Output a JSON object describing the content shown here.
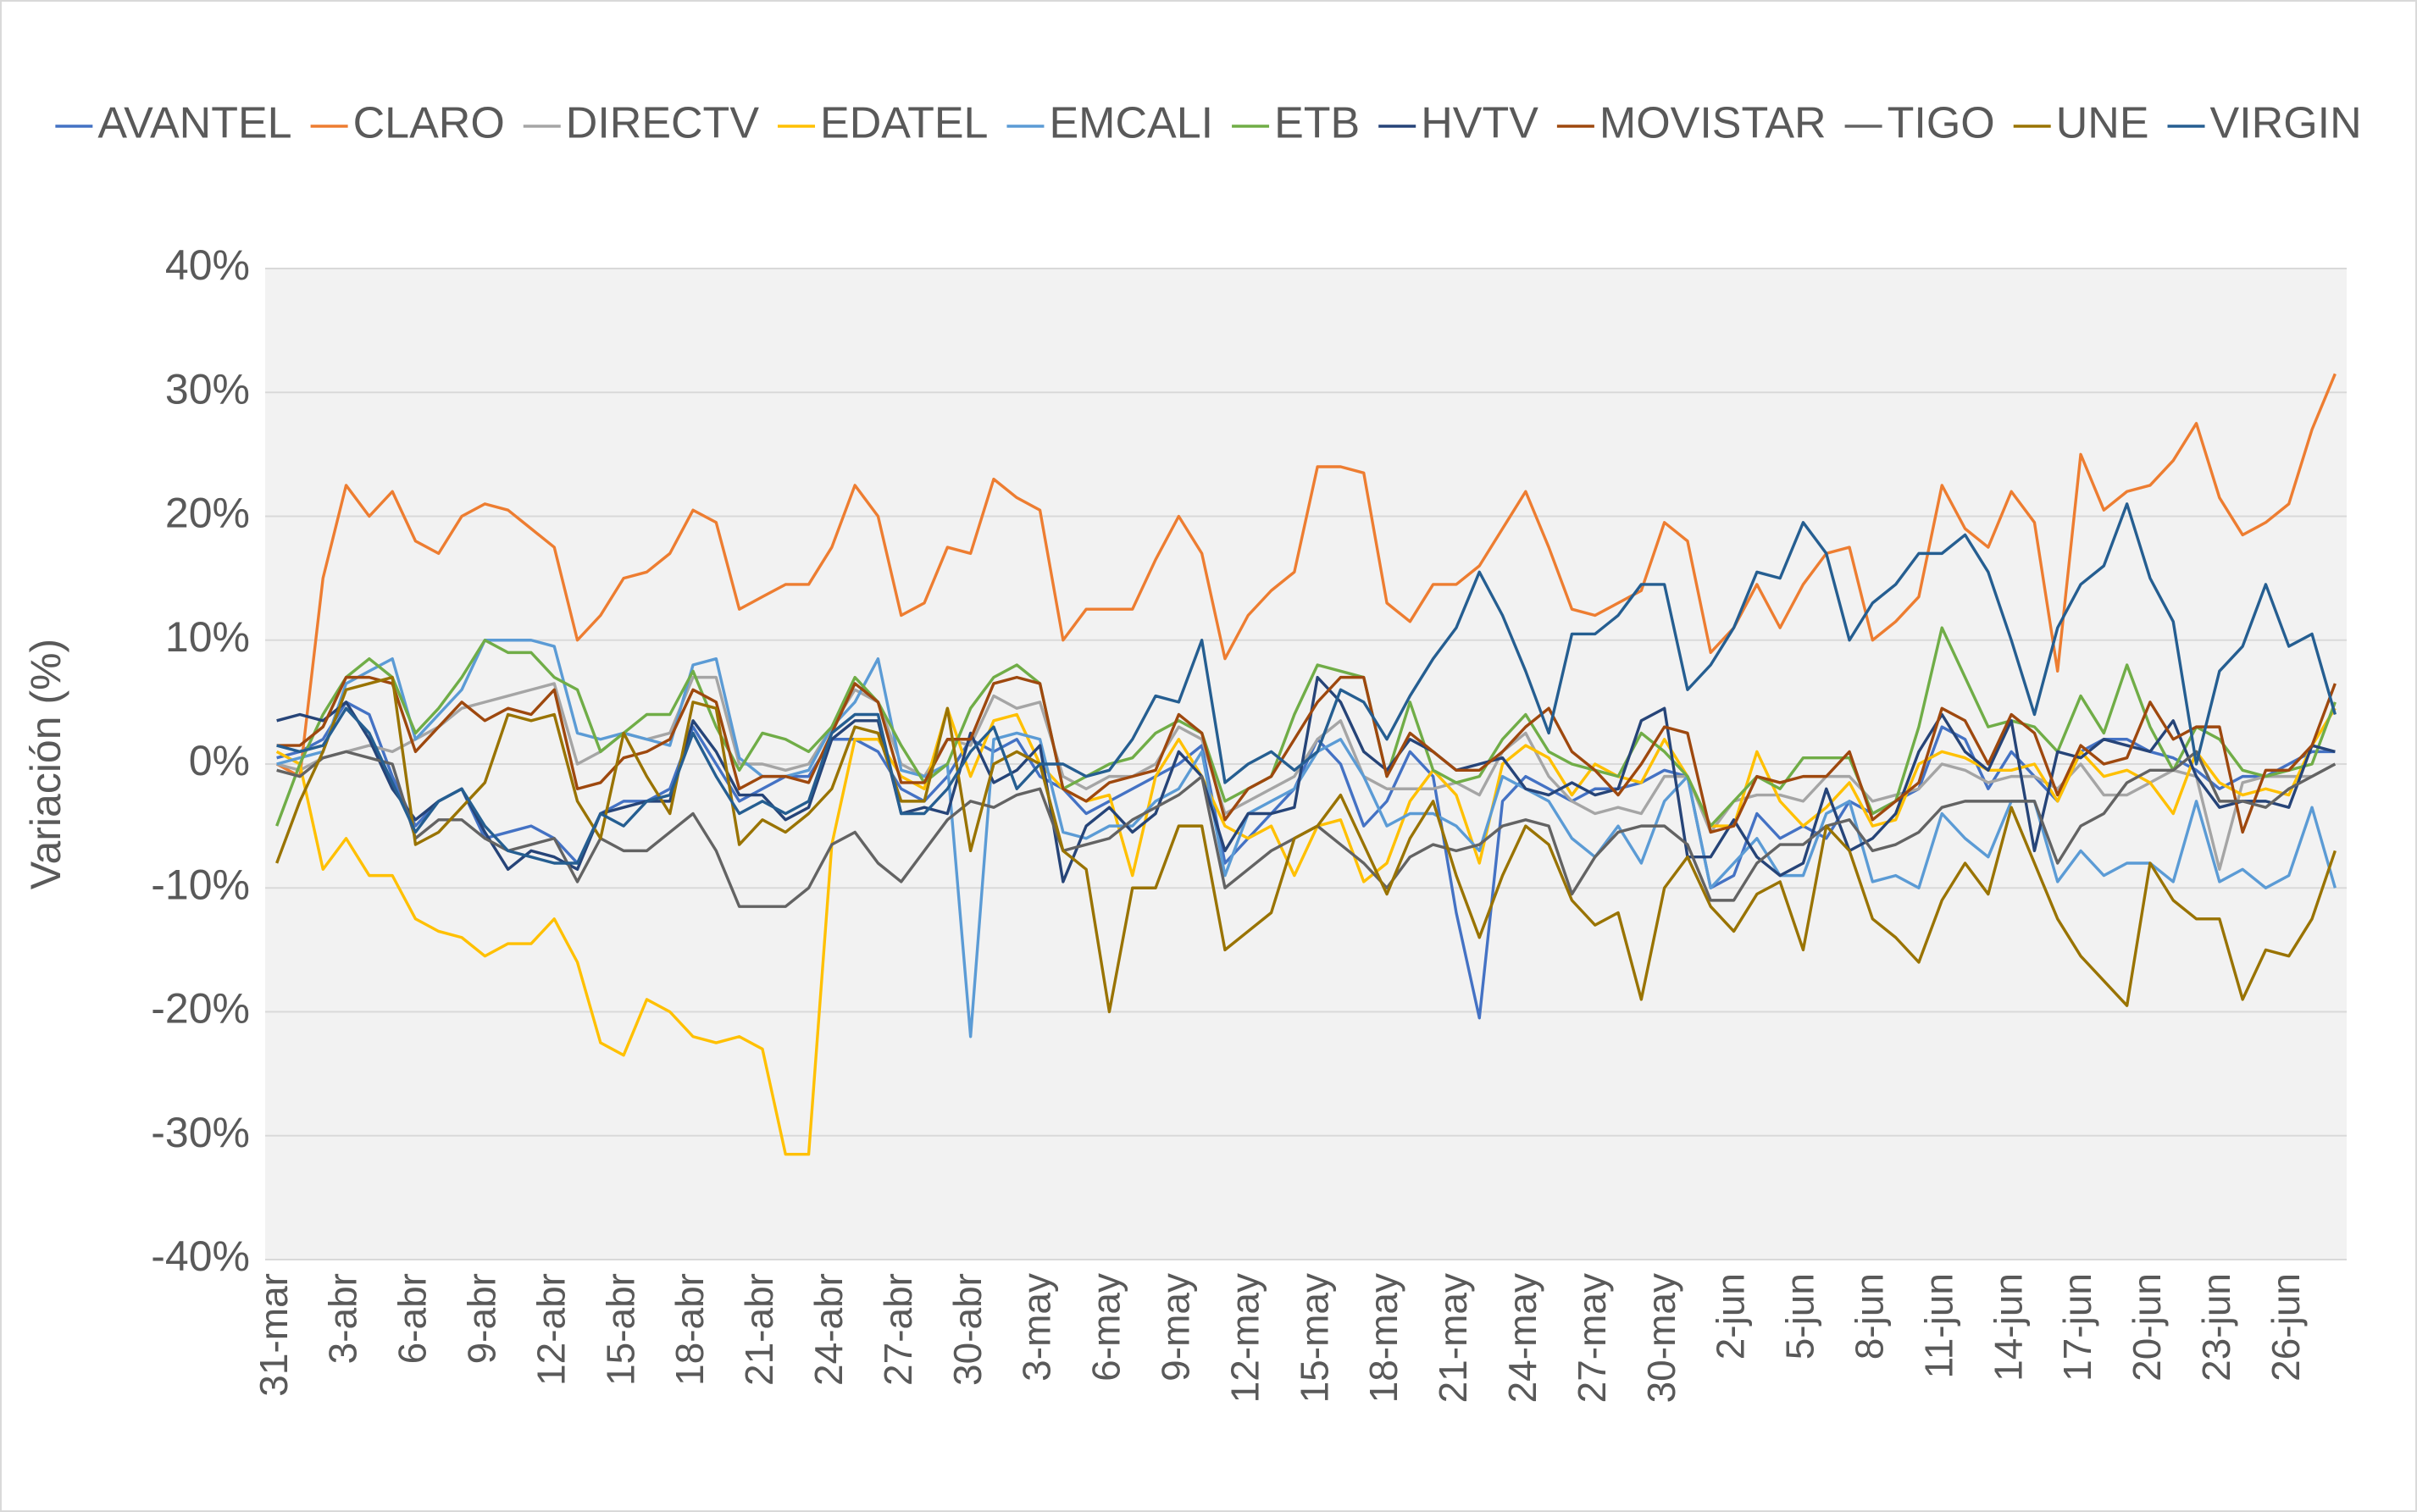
{
  "chart_data": {
    "type": "line",
    "y_label": "Variación (%)",
    "legend": "top",
    "grid": true,
    "ylim": [
      -40,
      40
    ],
    "yticks": [
      {
        "value": -40,
        "label": "-40%"
      },
      {
        "value": -30,
        "label": "-30%"
      },
      {
        "value": -20,
        "label": "-20%"
      },
      {
        "value": -10,
        "label": "-10%"
      },
      {
        "value": 0,
        "label": "0%"
      },
      {
        "value": 10,
        "label": "10%"
      },
      {
        "value": 20,
        "label": "20%"
      },
      {
        "value": 30,
        "label": "30%"
      },
      {
        "value": 40,
        "label": "40%"
      }
    ],
    "categories": [
      "31-mar",
      null,
      null,
      "3-abr",
      null,
      null,
      "6-abr",
      null,
      null,
      "9-abr",
      null,
      null,
      "12-abr",
      null,
      null,
      "15-abr",
      null,
      null,
      "18-abr",
      null,
      null,
      "21-abr",
      null,
      null,
      "24-abr",
      null,
      null,
      "27-abr",
      null,
      null,
      "30-abr",
      null,
      null,
      "3-may",
      null,
      null,
      "6-may",
      null,
      null,
      "9-may",
      null,
      null,
      "12-may",
      null,
      null,
      "15-may",
      null,
      null,
      "18-may",
      null,
      null,
      "21-may",
      null,
      null,
      "24-may",
      null,
      null,
      "27-may",
      null,
      null,
      "30-may",
      null,
      null,
      "2-jun",
      null,
      null,
      "5-jun",
      null,
      null,
      "8-jun",
      null,
      null,
      "11-jun",
      null,
      null,
      "14-jun",
      null,
      null,
      "17-jun",
      null,
      null,
      "20-jun",
      null,
      null,
      "23-jun",
      null,
      null,
      "26-jun",
      null,
      null
    ],
    "series": [
      {
        "name": "AVANTEL",
        "color": "#4472c4",
        "values": [
          0.5,
          1,
          2,
          5,
          4,
          -1,
          -5,
          -3,
          -2,
          -6,
          -5.5,
          -5,
          -6,
          -8,
          -4,
          -3,
          -3,
          -2,
          3,
          0,
          -3,
          -2,
          -1,
          -1,
          2,
          2,
          1,
          -2,
          -3,
          -1,
          2,
          1,
          2,
          -1,
          -2,
          -4,
          -3,
          -2,
          -1,
          0,
          1.5,
          -8,
          -6,
          -4,
          -2,
          2,
          0,
          -5,
          -3,
          1,
          -1,
          -12,
          -20.5,
          -3,
          -1,
          -2,
          -3,
          -2,
          -2,
          -1.5,
          -0.5,
          -1,
          -10,
          -9,
          -4,
          -6,
          -5,
          -6,
          -3,
          -4,
          -3,
          -2,
          3,
          2,
          -2,
          1,
          -1,
          -3,
          1,
          2,
          2,
          1,
          0.5,
          -0.5,
          -2,
          -1,
          -1,
          0,
          1,
          1
        ]
      },
      {
        "name": "CLARO",
        "color": "#ed7d31",
        "values": [
          0,
          -1,
          15,
          22.5,
          20,
          22,
          18,
          17,
          20,
          21,
          20.5,
          19,
          17.5,
          10,
          12,
          15,
          15.5,
          17,
          20.5,
          19.5,
          12.5,
          13.5,
          14.5,
          14.5,
          17.5,
          22.5,
          20,
          12,
          13,
          17.5,
          17,
          23,
          21.5,
          20.5,
          10,
          12.5,
          12.5,
          12.5,
          16.5,
          20,
          17,
          8.5,
          12,
          14,
          15.5,
          24,
          24,
          23.5,
          13,
          11.5,
          14.5,
          14.5,
          16,
          19,
          22,
          17.5,
          12.5,
          12,
          13,
          14,
          19.5,
          18,
          9,
          11,
          14.5,
          11,
          14.5,
          17,
          17.5,
          10,
          11.5,
          13.5,
          22.5,
          19,
          17.5,
          22,
          19.5,
          7.5,
          25,
          20.5,
          22,
          22.5,
          24.5,
          27.5,
          21.5,
          18.5,
          19.5,
          21,
          27,
          31.5
        ]
      },
      {
        "name": "DIRECTV",
        "color": "#a5a5a5",
        "values": [
          0,
          -0.5,
          0.5,
          1,
          1.5,
          1,
          2,
          3,
          4.5,
          5,
          5.5,
          6,
          6.5,
          0,
          1,
          2.5,
          2,
          2.5,
          7,
          7,
          0,
          0,
          -0.5,
          0,
          3,
          6,
          5,
          0,
          -1,
          2,
          1.5,
          5.5,
          4.5,
          5,
          -1,
          -2,
          -1,
          -1,
          0,
          3,
          2,
          -4,
          -3,
          -2,
          -1,
          2,
          3.5,
          -1,
          -2,
          -2,
          -2,
          -1.5,
          -2.5,
          1,
          2.5,
          -1,
          -3,
          -4,
          -3.5,
          -4,
          -1,
          -1,
          -5.5,
          -3,
          -2.5,
          -2.5,
          -3,
          -1,
          -1,
          -3,
          -2.5,
          -2,
          0,
          -0.5,
          -1.5,
          -1,
          -1,
          -2,
          0,
          -2.5,
          -2.5,
          -1.5,
          -0.5,
          -1,
          -8.5,
          -1.5,
          -1,
          -1,
          -1,
          0
        ]
      },
      {
        "name": "EDATEL",
        "color": "#ffc000",
        "values": [
          1,
          0,
          -8.5,
          -6,
          -9,
          -9,
          -12.5,
          -13.5,
          -14,
          -15.5,
          -14.5,
          -14.5,
          -12.5,
          -16,
          -22.5,
          -23.5,
          -19,
          -20,
          -22,
          -22.5,
          -22,
          -23,
          -31.5,
          -31.5,
          -6.5,
          2,
          2,
          -1,
          -2,
          4.5,
          -1,
          3.5,
          4,
          0,
          -2,
          -3,
          -2.5,
          -9,
          -1,
          2,
          -1,
          -5,
          -6,
          -5,
          -9,
          -5,
          -4.5,
          -9.5,
          -8,
          -3,
          -0.5,
          -2.5,
          -8,
          0,
          1.5,
          0.5,
          -2.5,
          0,
          -1,
          -1.5,
          2,
          -1,
          -5,
          -5,
          1,
          -3,
          -5,
          -3.5,
          -1.5,
          -5,
          -4.5,
          0,
          1,
          0.5,
          -0.5,
          -0.5,
          0,
          -3,
          1,
          -1,
          -0.5,
          -1.5,
          -4,
          1,
          -1.5,
          -2.5,
          -2,
          -2.5,
          1.5,
          4.5
        ]
      },
      {
        "name": "EMCALI",
        "color": "#5b9bd5",
        "values": [
          0,
          0.5,
          1,
          6.5,
          7.5,
          8.5,
          2,
          4,
          6,
          10,
          10,
          10,
          9.5,
          2.5,
          2,
          2.5,
          2,
          1.5,
          8,
          8.5,
          0.5,
          -1,
          -1,
          -0.5,
          3,
          5,
          8.5,
          -0.5,
          -1,
          0,
          -22,
          2,
          2.5,
          2,
          -5.5,
          -6,
          -5,
          -5,
          -3,
          -2,
          1,
          -9,
          -4,
          -3,
          -2,
          1,
          2,
          -1,
          -5,
          -4,
          -4,
          -5,
          -7,
          -1,
          -2,
          -3,
          -6,
          -7.5,
          -5,
          -8,
          -3,
          -1,
          -10,
          -8,
          -6,
          -9,
          -9,
          -4,
          -3,
          -9.5,
          -9,
          -10,
          -4,
          -6,
          -7.5,
          -3,
          -3,
          -9.5,
          -7,
          -9,
          -8,
          -8,
          -9.5,
          -3,
          -9.5,
          -8.5,
          -10,
          -9,
          -3.5,
          -10
        ]
      },
      {
        "name": "ETB",
        "color": "#70ad47",
        "values": [
          -5,
          0,
          4,
          7,
          8.5,
          7,
          2.5,
          4.5,
          7,
          10,
          9,
          9,
          7,
          6,
          1,
          2.5,
          4,
          4,
          7.5,
          3,
          -0.5,
          2.5,
          2,
          1,
          3,
          7,
          5,
          1.5,
          -1.5,
          0,
          4.5,
          7,
          8,
          6.5,
          -2,
          -1,
          0,
          0.5,
          2.5,
          3.5,
          2.5,
          -3,
          -2,
          -1,
          4,
          8,
          7.5,
          7,
          -1,
          5,
          -0.5,
          -1.5,
          -1,
          2,
          4,
          1,
          0,
          -0.5,
          -1,
          2.5,
          1,
          -1,
          -5,
          -3,
          -1,
          -2,
          0.5,
          0.5,
          0.5,
          -4,
          -3,
          3,
          11,
          7,
          3,
          3.5,
          3,
          1,
          5.5,
          2.5,
          8,
          3,
          -0.5,
          3,
          2,
          -0.5,
          -1,
          -0.5,
          0,
          5
        ]
      },
      {
        "name": "HVTV",
        "color": "#264478",
        "values": [
          3.5,
          4,
          3.5,
          5,
          2,
          -2,
          -4.5,
          -3,
          -2,
          -5.5,
          -8.5,
          -7,
          -7.5,
          -8.5,
          -4,
          -3.5,
          -3,
          -3,
          3.5,
          1,
          -2.5,
          -2.5,
          -4.5,
          -3.5,
          2,
          3.5,
          3.5,
          -4,
          -3.5,
          -4,
          2.5,
          -1.5,
          -0.5,
          1.5,
          -9.5,
          -5,
          -3.5,
          -5.5,
          -4,
          1,
          -1,
          -7,
          -4,
          -4,
          -3.5,
          7,
          5,
          1,
          -0.5,
          2,
          1,
          -0.5,
          0,
          0.5,
          -2,
          -2.5,
          -1.5,
          -2.5,
          -2,
          3.5,
          4.5,
          -7.5,
          -7.5,
          -4.5,
          -7.5,
          -9,
          -8,
          -2,
          -7,
          -6,
          -4,
          1,
          4,
          1,
          -0.5,
          3.5,
          -7,
          1,
          0.5,
          2,
          1.5,
          1,
          3.5,
          -1,
          -3.5,
          -3,
          -3,
          -3.5,
          1.5,
          1
        ]
      },
      {
        "name": "MOVISTAR",
        "color": "#9e480e",
        "values": [
          1.5,
          1.5,
          3,
          7,
          7,
          6.5,
          1,
          3,
          5,
          3.5,
          4.5,
          4,
          6,
          -2,
          -1.5,
          0.5,
          1,
          2,
          6,
          5,
          -2,
          -1,
          -1,
          -1.5,
          2.5,
          6.5,
          5,
          -1.5,
          -1.5,
          2,
          2,
          6.5,
          7,
          6.5,
          -2,
          -3,
          -1.5,
          -1,
          -0.5,
          4,
          2.5,
          -4.5,
          -2,
          -1,
          2,
          5,
          7,
          7,
          -1,
          2.5,
          1,
          -0.5,
          -0.5,
          1,
          3,
          4.5,
          1,
          -0.5,
          -2.5,
          0,
          3,
          2.5,
          -5.5,
          -5,
          -1,
          -1.5,
          -1,
          -1,
          1,
          -4.5,
          -3,
          -1.5,
          4.5,
          3.5,
          0,
          4,
          2.5,
          -2.5,
          1.5,
          0,
          0.5,
          5,
          2,
          3,
          3,
          -5.5,
          -0.5,
          -0.5,
          1.5,
          6.5
        ]
      },
      {
        "name": "TIGO",
        "color": "#636363",
        "values": [
          -0.5,
          -1,
          0.5,
          1,
          0.5,
          0,
          -6,
          -4.5,
          -4.5,
          -6,
          -7,
          -6.5,
          -6,
          -9.5,
          -6,
          -7,
          -7,
          -5.5,
          -4,
          -7,
          -11.5,
          -11.5,
          -11.5,
          -10,
          -6.5,
          -5.5,
          -8,
          -9.5,
          -7,
          -4.5,
          -3,
          -3.5,
          -2.5,
          -2,
          -7,
          -6.5,
          -6,
          -4.5,
          -3.5,
          -2.5,
          -1,
          -10,
          -8.5,
          -7,
          -6,
          -5,
          -6.5,
          -8,
          -10,
          -7.5,
          -6.5,
          -7,
          -6.5,
          -5,
          -4.5,
          -5,
          -10.5,
          -7.5,
          -5.5,
          -5,
          -5,
          -6.5,
          -11,
          -11,
          -8,
          -6.5,
          -6.5,
          -5,
          -4.5,
          -7,
          -6.5,
          -5.5,
          -3.5,
          -3,
          -3,
          -3,
          -3,
          -8,
          -5,
          -4,
          -1.5,
          -0.5,
          -0.5,
          1,
          -3,
          -3,
          -3.5,
          -2,
          -1,
          0
        ]
      },
      {
        "name": "UNE",
        "color": "#997300",
        "values": [
          -8,
          -3,
          1,
          6,
          6.5,
          7,
          -6.5,
          -5.5,
          -3.5,
          -1.5,
          4,
          3.5,
          4,
          -3,
          -6,
          2.5,
          -1,
          -4,
          5,
          4.5,
          -6.5,
          -4.5,
          -5.5,
          -4,
          -2,
          3,
          2.5,
          -3,
          -3,
          4.5,
          -7,
          0,
          1,
          0,
          -7,
          -8.5,
          -20,
          -10,
          -10,
          -5,
          -5,
          -15,
          -13.5,
          -12,
          -6,
          -5,
          -2.5,
          -6.5,
          -10.5,
          -6,
          -3,
          -9,
          -14,
          -9,
          -5,
          -6.5,
          -11,
          -13,
          -12,
          -19,
          -10,
          -7.5,
          -11.5,
          -13.5,
          -10.5,
          -9.5,
          -15,
          -5,
          -7,
          -12.5,
          -14,
          -16,
          -11,
          -8,
          -10.5,
          -3.5,
          -8,
          -12.5,
          -15.5,
          -17.5,
          -19.5,
          -8,
          -11,
          -12.5,
          -12.5,
          -19,
          -15,
          -15.5,
          -12.5,
          -7
        ]
      },
      {
        "name": "VIRGIN",
        "color": "#255e91",
        "values": [
          1.5,
          1,
          1.5,
          4.5,
          2.5,
          -1.5,
          -5.5,
          -3,
          -2,
          -5,
          -7,
          -7.5,
          -8,
          -8,
          -4,
          -5,
          -3,
          -2.5,
          2.5,
          -1,
          -4,
          -3,
          -4,
          -3,
          2.5,
          4,
          4,
          -4,
          -4,
          -2,
          1,
          3,
          -2,
          0,
          0,
          -1,
          -0.5,
          2,
          5.5,
          5,
          10,
          -1.5,
          0,
          1,
          -0.5,
          1,
          6,
          5,
          2,
          5.5,
          8.5,
          11,
          15.5,
          12,
          7.5,
          2.5,
          10.5,
          10.5,
          12,
          14.5,
          14.5,
          6,
          8,
          11,
          15.5,
          15,
          19.5,
          17,
          10,
          13,
          14.5,
          17,
          17,
          18.5,
          15.5,
          10,
          4,
          11,
          14.5,
          16,
          21,
          15,
          11.5,
          0,
          7.5,
          9.5,
          14.5,
          9.5,
          10.5,
          4
        ]
      }
    ]
  }
}
